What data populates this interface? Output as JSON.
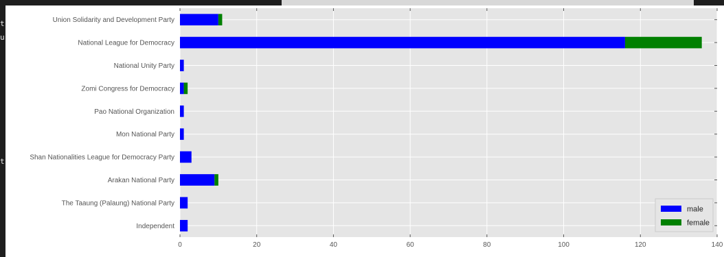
{
  "colors": {
    "male": "#0000ff",
    "female": "#008000",
    "plot_bg": "#e5e5e5",
    "grid": "#ffffff"
  },
  "chart_data": {
    "type": "bar",
    "orientation": "horizontal",
    "stacked": true,
    "categories": [
      "Union Solidarity and Development Party",
      "National League for Democracy",
      "National Unity Party",
      "Zomi Congress for Democracy",
      "Pao National Organization",
      "Mon National Party",
      "Shan Nationalities League for Democracy Party",
      "Arakan National Party",
      "The Taaung (Palaung) National Party",
      "Independent"
    ],
    "series": [
      {
        "name": "male",
        "values": [
          10,
          116,
          1,
          1,
          1,
          1,
          3,
          9,
          2,
          2
        ]
      },
      {
        "name": "female",
        "values": [
          1,
          20,
          0,
          1,
          0,
          0,
          0,
          1,
          0,
          0
        ]
      }
    ],
    "xlim": [
      0,
      140
    ],
    "xticks": [
      0,
      20,
      40,
      60,
      80,
      100,
      120,
      140
    ],
    "grid": true,
    "legend_position": "bottom-right"
  }
}
